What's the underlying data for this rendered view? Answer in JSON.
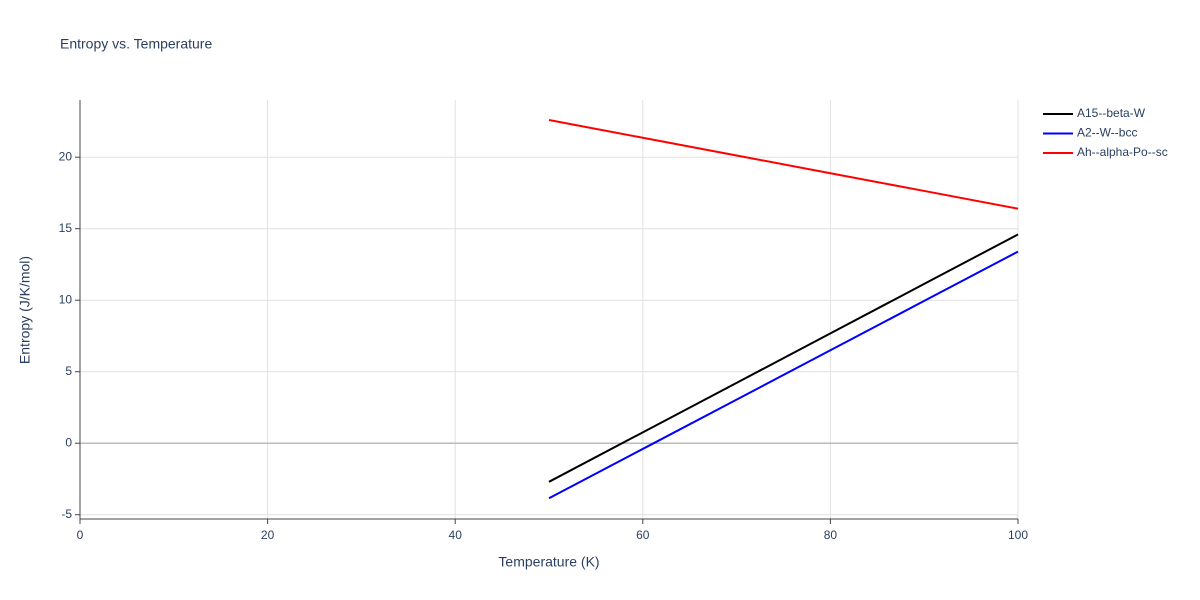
{
  "chart_data": {
    "type": "line",
    "title": "Entropy vs. Temperature",
    "x_label": "Temperature (K)",
    "y_label": "Entropy (J/K/mol)",
    "x": [
      50,
      60,
      70,
      80,
      90,
      100
    ],
    "series": [
      {
        "name": "A15--beta-W",
        "color": "#000000",
        "values": [
          -2.7,
          0.76,
          4.22,
          7.68,
          11.14,
          14.6
        ]
      },
      {
        "name": "A2--W--bcc",
        "color": "#0000ff",
        "values": [
          -3.85,
          -0.4,
          3.05,
          6.5,
          9.95,
          13.4
        ]
      },
      {
        "name": "Ah--alpha-Po--sc",
        "color": "#ff0000",
        "values": [
          22.6,
          21.36,
          20.12,
          18.88,
          17.64,
          16.4
        ]
      }
    ],
    "xlim": [
      0,
      100
    ],
    "xticks": [
      0,
      20,
      40,
      60,
      80,
      100
    ],
    "ylim": [
      -5.3,
      24
    ],
    "yticks": [
      -5,
      0,
      5,
      10,
      15,
      20
    ],
    "grid": true,
    "legend": "top-right"
  }
}
